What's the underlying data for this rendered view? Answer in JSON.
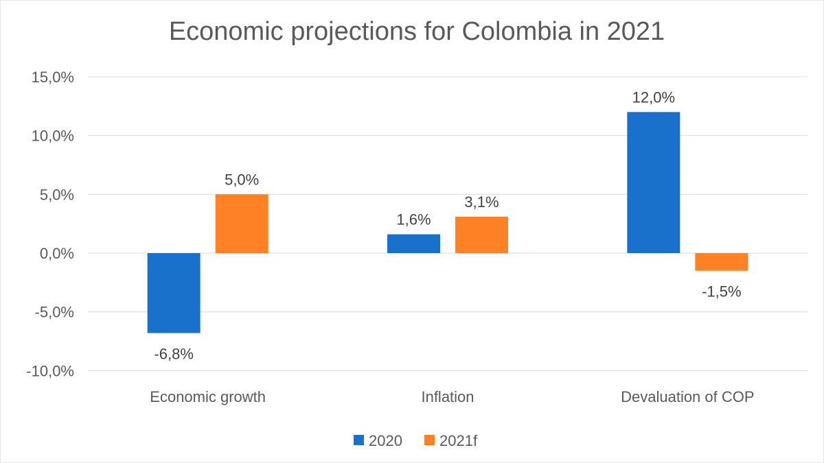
{
  "chart_data": {
    "type": "bar",
    "title": "Economic projections for Colombia in 2021",
    "categories": [
      "Economic growth",
      "Inflation",
      "Devaluation of COP"
    ],
    "series": [
      {
        "name": "2020",
        "values": [
          -6.8,
          1.6,
          12.0
        ],
        "labels": [
          "-6,8%",
          "1,6%",
          "12,0%"
        ],
        "color": "#1a71cc"
      },
      {
        "name": "2021f",
        "values": [
          5.0,
          3.1,
          -1.5
        ],
        "labels": [
          "5,0%",
          "3,1%",
          "-1,5%"
        ],
        "color": "#ff8125"
      }
    ],
    "ylim": [
      -10,
      15
    ],
    "yticks": [
      15,
      10,
      5,
      0,
      -5,
      -10
    ],
    "ytick_labels": [
      "15,0%",
      "10,0%",
      "5,0%",
      "0,0%",
      "-5,0%",
      "-10,0%"
    ],
    "xlabel": "",
    "ylabel": "",
    "grid": true,
    "legend": "bottom"
  }
}
